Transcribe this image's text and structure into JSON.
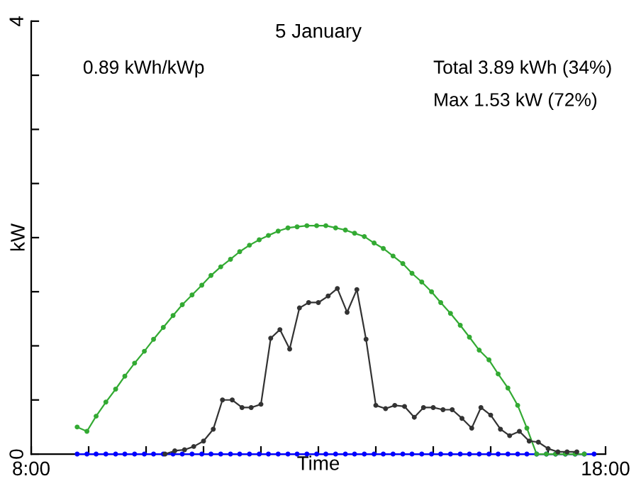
{
  "chart_data": {
    "type": "line",
    "title": "5 January",
    "ylabel": "kW",
    "xlabel": "Time",
    "annotations": [
      "0.89 kWh/kWp",
      "Total 3.89 kWh (34%)",
      "Max 1.53 kW (72%)"
    ],
    "xlim": [
      8,
      18
    ],
    "ylim": [
      0,
      4
    ],
    "xticks": [
      {
        "value": 8,
        "label": "8:00"
      },
      {
        "value": 9,
        "label": null
      },
      {
        "value": 10,
        "label": null
      },
      {
        "value": 11,
        "label": null
      },
      {
        "value": 12,
        "label": null
      },
      {
        "value": 13,
        "label": null
      },
      {
        "value": 14,
        "label": null
      },
      {
        "value": 15,
        "label": null
      },
      {
        "value": 16,
        "label": null
      },
      {
        "value": 17,
        "label": null
      },
      {
        "value": 18,
        "label": "18:00"
      }
    ],
    "yticks": [
      0,
      {
        "value": 0.5,
        "label": null
      },
      {
        "value": 1,
        "label": null
      },
      {
        "value": 1.5,
        "label": null
      },
      {
        "value": 2,
        "label": null
      },
      {
        "value": 2.5,
        "label": null
      },
      {
        "value": 3,
        "label": null
      },
      {
        "value": 3.5,
        "label": null
      },
      4
    ],
    "grid": false,
    "legend": false,
    "marker": "circle",
    "line_style": "solid",
    "series": [
      {
        "color": "#33aa33",
        "x": [
          8.8,
          8.97,
          9.13,
          9.3,
          9.47,
          9.63,
          9.8,
          9.97,
          10.13,
          10.3,
          10.47,
          10.63,
          10.8,
          10.97,
          11.13,
          11.3,
          11.47,
          11.63,
          11.8,
          11.97,
          12.13,
          12.3,
          12.47,
          12.63,
          12.8,
          12.97,
          13.13,
          13.3,
          13.47,
          13.63,
          13.8,
          13.97,
          14.13,
          14.3,
          14.47,
          14.63,
          14.8,
          14.97,
          15.13,
          15.3,
          15.47,
          15.63,
          15.8,
          15.97,
          16.13,
          16.3,
          16.47,
          16.63,
          16.8,
          16.97,
          17.13,
          17.3,
          17.47,
          17.63
        ],
        "values": [
          0.25,
          0.21,
          0.35,
          0.48,
          0.6,
          0.72,
          0.84,
          0.95,
          1.06,
          1.17,
          1.28,
          1.38,
          1.47,
          1.56,
          1.65,
          1.73,
          1.8,
          1.87,
          1.93,
          1.98,
          2.02,
          2.06,
          2.09,
          2.1,
          2.11,
          2.11,
          2.11,
          2.09,
          2.07,
          2.04,
          2.01,
          1.95,
          1.9,
          1.83,
          1.76,
          1.67,
          1.59,
          1.5,
          1.4,
          1.3,
          1.19,
          1.08,
          0.96,
          0.87,
          0.74,
          0.61,
          0.45,
          0.24,
          0,
          0,
          0,
          0,
          0,
          0
        ]
      },
      {
        "color": "#0000ff",
        "x": [
          8.8,
          8.97,
          9.13,
          9.3,
          9.47,
          9.63,
          9.8,
          9.97,
          10.13,
          10.3,
          10.47,
          10.63,
          10.8,
          10.97,
          11.13,
          11.3,
          11.47,
          11.63,
          11.8,
          11.97,
          12.13,
          12.3,
          12.47,
          12.63,
          12.8,
          12.97,
          13.13,
          13.3,
          13.47,
          13.63,
          13.8,
          13.97,
          14.13,
          14.3,
          14.47,
          14.63,
          14.8,
          14.97,
          15.13,
          15.3,
          15.47,
          15.63,
          15.8,
          15.97,
          16.13,
          16.3,
          16.47,
          16.63,
          16.8,
          16.97,
          17.13,
          17.3,
          17.47,
          17.63,
          17.8
        ],
        "values": [
          0,
          0,
          0,
          0,
          0,
          0,
          0,
          0,
          0,
          0,
          0,
          0,
          0,
          0,
          0,
          0,
          0,
          0,
          0,
          0,
          0,
          0,
          0,
          0,
          0,
          0,
          0,
          0,
          0,
          0,
          0,
          0,
          0,
          0,
          0,
          0,
          0,
          0,
          0,
          0,
          0,
          0,
          0,
          0,
          0,
          0,
          0,
          0,
          0,
          0,
          0,
          0,
          0,
          0,
          0
        ]
      },
      {
        "color": "#333333",
        "x": [
          10.33,
          10.5,
          10.67,
          10.83,
          11,
          11.17,
          11.33,
          11.5,
          11.67,
          11.83,
          12,
          12.17,
          12.33,
          12.5,
          12.67,
          12.83,
          13,
          13.17,
          13.33,
          13.5,
          13.67,
          13.83,
          14,
          14.17,
          14.33,
          14.5,
          14.67,
          14.83,
          15,
          15.17,
          15.33,
          15.5,
          15.67,
          15.83,
          16,
          16.17,
          16.33,
          16.5,
          16.67,
          16.83,
          17,
          17.17,
          17.33,
          17.5
        ],
        "values": [
          0,
          0.03,
          0.04,
          0.07,
          0.12,
          0.23,
          0.5,
          0.5,
          0.43,
          0.43,
          0.46,
          1.07,
          1.15,
          0.97,
          1.35,
          1.4,
          1.4,
          1.46,
          1.53,
          1.31,
          1.52,
          1.06,
          0.45,
          0.42,
          0.45,
          0.44,
          0.34,
          0.43,
          0.43,
          0.41,
          0.41,
          0.33,
          0.24,
          0.43,
          0.36,
          0.23,
          0.17,
          0.21,
          0.12,
          0.11,
          0.05,
          0.02,
          0.02,
          0.02
        ]
      }
    ]
  }
}
